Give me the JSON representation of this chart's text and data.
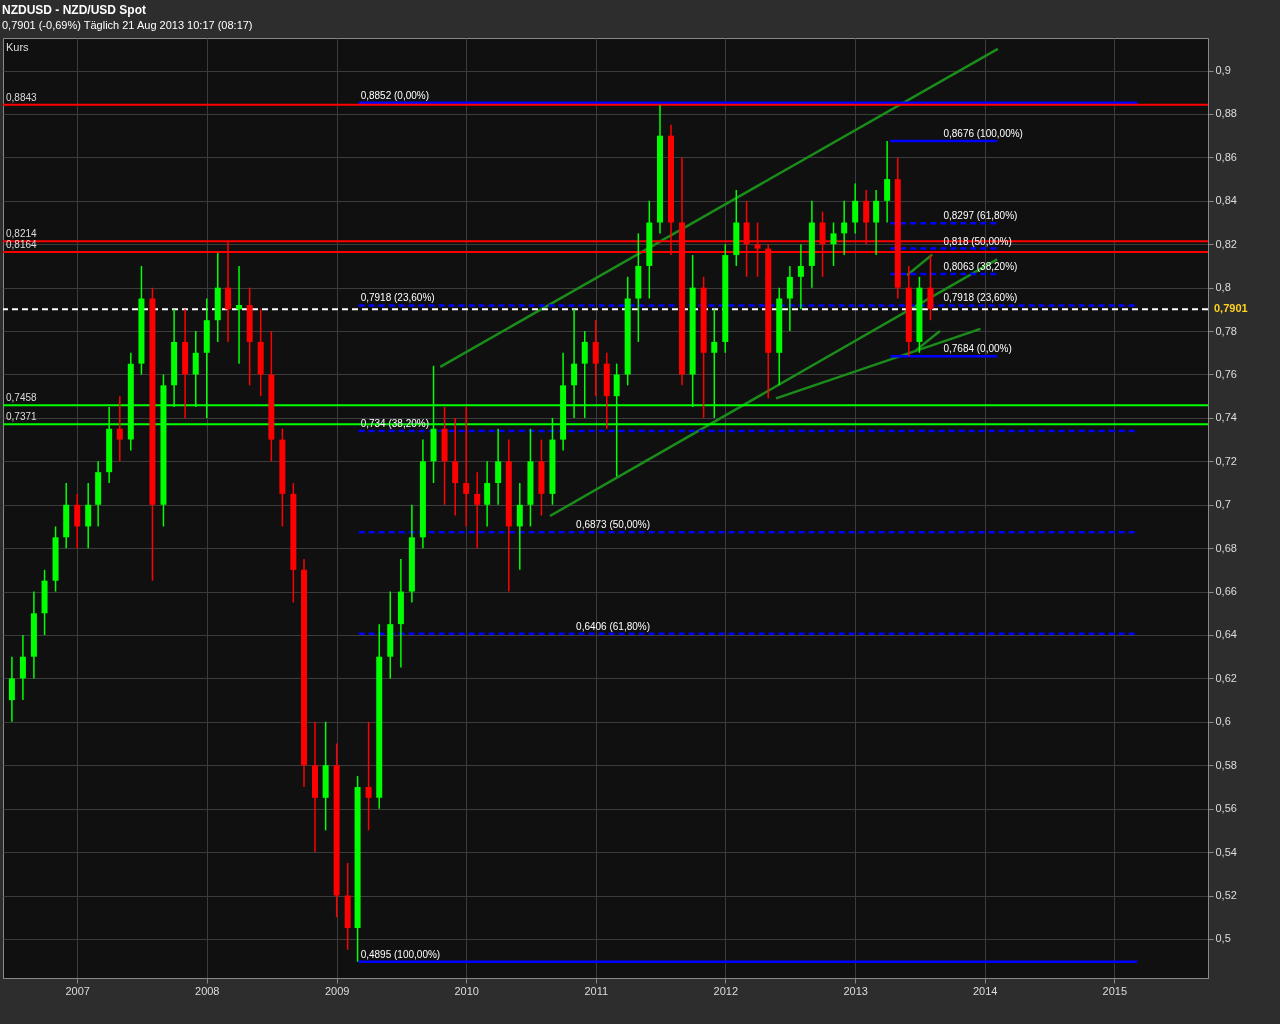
{
  "chart_data": {
    "type": "candlestick",
    "title": "NZDUSD - NZD/USD Spot",
    "subtitle": "0,7901 (-0,69%)    Täglich  21 Aug 2013 10:17 (08:17)",
    "x": [
      "2006-07",
      "2006-08",
      "2006-09",
      "2006-10",
      "2006-11",
      "2006-12",
      "2007-01",
      "2007-02",
      "2007-03",
      "2007-04",
      "2007-05",
      "2007-06",
      "2007-07",
      "2007-08",
      "2007-09",
      "2007-10",
      "2007-11",
      "2007-12",
      "2008-01",
      "2008-02",
      "2008-03",
      "2008-04",
      "2008-05",
      "2008-06",
      "2008-07",
      "2008-08",
      "2008-09",
      "2008-10",
      "2008-11",
      "2008-12",
      "2009-01",
      "2009-02",
      "2009-03",
      "2009-04",
      "2009-05",
      "2009-06",
      "2009-07",
      "2009-08",
      "2009-09",
      "2009-10",
      "2009-11",
      "2009-12",
      "2010-01",
      "2010-02",
      "2010-03",
      "2010-04",
      "2010-05",
      "2010-06",
      "2010-07",
      "2010-08",
      "2010-09",
      "2010-10",
      "2010-11",
      "2010-12",
      "2011-01",
      "2011-02",
      "2011-03",
      "2011-04",
      "2011-05",
      "2011-06",
      "2011-07",
      "2011-08",
      "2011-09",
      "2011-10",
      "2011-11",
      "2011-12",
      "2012-01",
      "2012-02",
      "2012-03",
      "2012-04",
      "2012-05",
      "2012-06",
      "2012-07",
      "2012-08",
      "2012-09",
      "2012-10",
      "2012-11",
      "2012-12",
      "2013-01",
      "2013-02",
      "2013-03",
      "2013-04",
      "2013-05",
      "2013-06",
      "2013-07",
      "2013-08"
    ],
    "ohlc": [
      [
        0.61,
        0.63,
        0.6,
        0.62
      ],
      [
        0.62,
        0.64,
        0.61,
        0.63
      ],
      [
        0.63,
        0.66,
        0.62,
        0.65
      ],
      [
        0.65,
        0.67,
        0.64,
        0.665
      ],
      [
        0.665,
        0.69,
        0.66,
        0.685
      ],
      [
        0.685,
        0.71,
        0.68,
        0.7
      ],
      [
        0.7,
        0.705,
        0.68,
        0.69
      ],
      [
        0.69,
        0.71,
        0.68,
        0.7
      ],
      [
        0.7,
        0.72,
        0.69,
        0.715
      ],
      [
        0.715,
        0.745,
        0.71,
        0.735
      ],
      [
        0.735,
        0.75,
        0.72,
        0.73
      ],
      [
        0.73,
        0.77,
        0.725,
        0.765
      ],
      [
        0.765,
        0.81,
        0.76,
        0.795
      ],
      [
        0.795,
        0.8,
        0.665,
        0.7
      ],
      [
        0.7,
        0.76,
        0.69,
        0.755
      ],
      [
        0.755,
        0.79,
        0.745,
        0.775
      ],
      [
        0.775,
        0.79,
        0.74,
        0.76
      ],
      [
        0.76,
        0.78,
        0.745,
        0.77
      ],
      [
        0.77,
        0.795,
        0.74,
        0.785
      ],
      [
        0.785,
        0.816,
        0.775,
        0.8
      ],
      [
        0.8,
        0.821,
        0.775,
        0.79
      ],
      [
        0.79,
        0.81,
        0.765,
        0.792
      ],
      [
        0.792,
        0.8,
        0.755,
        0.775
      ],
      [
        0.775,
        0.79,
        0.75,
        0.76
      ],
      [
        0.76,
        0.78,
        0.72,
        0.73
      ],
      [
        0.73,
        0.735,
        0.69,
        0.705
      ],
      [
        0.705,
        0.71,
        0.655,
        0.67
      ],
      [
        0.67,
        0.675,
        0.57,
        0.58
      ],
      [
        0.58,
        0.6,
        0.54,
        0.565
      ],
      [
        0.565,
        0.6,
        0.55,
        0.58
      ],
      [
        0.58,
        0.59,
        0.51,
        0.52
      ],
      [
        0.52,
        0.535,
        0.495,
        0.505
      ],
      [
        0.505,
        0.575,
        0.4895,
        0.57
      ],
      [
        0.57,
        0.6,
        0.55,
        0.565
      ],
      [
        0.565,
        0.645,
        0.56,
        0.63
      ],
      [
        0.63,
        0.66,
        0.62,
        0.645
      ],
      [
        0.645,
        0.675,
        0.625,
        0.66
      ],
      [
        0.66,
        0.7,
        0.655,
        0.685
      ],
      [
        0.685,
        0.73,
        0.68,
        0.72
      ],
      [
        0.72,
        0.764,
        0.71,
        0.735
      ],
      [
        0.735,
        0.745,
        0.7,
        0.72
      ],
      [
        0.72,
        0.74,
        0.695,
        0.71
      ],
      [
        0.71,
        0.745,
        0.69,
        0.705
      ],
      [
        0.705,
        0.715,
        0.68,
        0.7
      ],
      [
        0.7,
        0.72,
        0.69,
        0.71
      ],
      [
        0.71,
        0.735,
        0.7,
        0.72
      ],
      [
        0.72,
        0.73,
        0.66,
        0.69
      ],
      [
        0.69,
        0.71,
        0.67,
        0.7
      ],
      [
        0.7,
        0.735,
        0.69,
        0.72
      ],
      [
        0.72,
        0.73,
        0.695,
        0.705
      ],
      [
        0.705,
        0.74,
        0.7,
        0.73
      ],
      [
        0.73,
        0.77,
        0.725,
        0.755
      ],
      [
        0.755,
        0.79,
        0.74,
        0.765
      ],
      [
        0.765,
        0.78,
        0.74,
        0.775
      ],
      [
        0.775,
        0.785,
        0.75,
        0.765
      ],
      [
        0.765,
        0.77,
        0.735,
        0.75
      ],
      [
        0.75,
        0.765,
        0.713,
        0.76
      ],
      [
        0.76,
        0.805,
        0.755,
        0.795
      ],
      [
        0.795,
        0.825,
        0.775,
        0.81
      ],
      [
        0.81,
        0.84,
        0.795,
        0.83
      ],
      [
        0.83,
        0.884,
        0.825,
        0.87
      ],
      [
        0.87,
        0.875,
        0.815,
        0.83
      ],
      [
        0.83,
        0.86,
        0.755,
        0.76
      ],
      [
        0.76,
        0.815,
        0.745,
        0.8
      ],
      [
        0.8,
        0.805,
        0.74,
        0.77
      ],
      [
        0.77,
        0.79,
        0.74,
        0.775
      ],
      [
        0.775,
        0.82,
        0.77,
        0.815
      ],
      [
        0.815,
        0.845,
        0.81,
        0.83
      ],
      [
        0.83,
        0.84,
        0.805,
        0.82
      ],
      [
        0.82,
        0.83,
        0.805,
        0.818
      ],
      [
        0.818,
        0.82,
        0.749,
        0.77
      ],
      [
        0.77,
        0.8,
        0.755,
        0.795
      ],
      [
        0.795,
        0.81,
        0.78,
        0.805
      ],
      [
        0.805,
        0.82,
        0.79,
        0.81
      ],
      [
        0.81,
        0.84,
        0.8,
        0.83
      ],
      [
        0.83,
        0.835,
        0.805,
        0.82
      ],
      [
        0.82,
        0.83,
        0.81,
        0.825
      ],
      [
        0.825,
        0.84,
        0.815,
        0.83
      ],
      [
        0.83,
        0.848,
        0.825,
        0.84
      ],
      [
        0.84,
        0.845,
        0.82,
        0.83
      ],
      [
        0.83,
        0.845,
        0.815,
        0.84
      ],
      [
        0.84,
        0.8676,
        0.83,
        0.85
      ],
      [
        0.85,
        0.86,
        0.795,
        0.8
      ],
      [
        0.8,
        0.81,
        0.7684,
        0.775
      ],
      [
        0.775,
        0.805,
        0.77,
        0.8
      ],
      [
        0.8,
        0.815,
        0.785,
        0.7901
      ]
    ],
    "colors": [
      "#00ff00",
      "#00ff00",
      "#00ff00",
      "#00ff00",
      "#00ff00",
      "#00ff00",
      "#ff0000",
      "#00ff00",
      "#00ff00",
      "#00ff00",
      "#ff0000",
      "#00ff00",
      "#00ff00",
      "#ff0000",
      "#00ff00",
      "#00ff00",
      "#ff0000",
      "#00ff00",
      "#00ff00",
      "#00ff00",
      "#ff0000",
      "#00ff00",
      "#ff0000",
      "#ff0000",
      "#ff0000",
      "#ff0000",
      "#ff0000",
      "#ff0000",
      "#ff0000",
      "#00ff00",
      "#ff0000",
      "#ff0000",
      "#00ff00",
      "#ff0000",
      "#00ff00",
      "#00ff00",
      "#00ff00",
      "#00ff00",
      "#00ff00",
      "#00ff00",
      "#ff0000",
      "#ff0000",
      "#ff0000",
      "#ff0000",
      "#00ff00",
      "#00ff00",
      "#ff0000",
      "#00ff00",
      "#00ff00",
      "#ff0000",
      "#00ff00",
      "#00ff00",
      "#00ff00",
      "#00ff00",
      "#ff0000",
      "#ff0000",
      "#00ff00",
      "#00ff00",
      "#00ff00",
      "#00ff00",
      "#00ff00",
      "#ff0000",
      "#ff0000",
      "#00ff00",
      "#ff0000",
      "#00ff00",
      "#00ff00",
      "#00ff00",
      "#ff0000",
      "#ff0000",
      "#ff0000",
      "#00ff00",
      "#00ff00",
      "#00ff00",
      "#00ff00",
      "#ff0000",
      "#00ff00",
      "#00ff00",
      "#00ff00",
      "#ff0000",
      "#00ff00",
      "#00ff00",
      "#ff0000",
      "#ff0000",
      "#00ff00",
      "#ff0000"
    ],
    "series": [
      {
        "type": "line",
        "color": "#1a8c1a",
        "line_style": "solid",
        "x": [
          "2009-10-20",
          "2014-02-07"
        ],
        "values": [
          0.7635,
          0.91
        ]
      },
      {
        "type": "line",
        "color": "#1a8c1a",
        "line_style": "solid",
        "x": [
          "2010-08-25",
          "2014-02-05"
        ],
        "values": [
          0.6948,
          0.813
        ]
      },
      {
        "type": "line",
        "color": "#1a8c1a",
        "line_style": "solid",
        "x": [
          "2012-05-23",
          "2013-12-20"
        ],
        "values": [
          0.749,
          0.781
        ]
      },
      {
        "type": "line",
        "color": "#1a8c1a",
        "line_style": "solid",
        "x": [
          "2013-05-27",
          "2013-08-06"
        ],
        "values": [
          0.8057,
          0.8152
        ]
      },
      {
        "type": "line",
        "color": "#1a8c1a",
        "line_style": "solid",
        "x": [
          "2013-06-20",
          "2013-08-28"
        ],
        "values": [
          0.771,
          0.78
        ]
      },
      {
        "type": "line",
        "color": "#0000ff",
        "line_style": "solid",
        "x": [
          "2009-03-04",
          "2015-03-07"
        ],
        "values": [
          0.8852,
          0.8852
        ]
      },
      {
        "type": "line",
        "color": "#0000ff",
        "line_style": "dashed",
        "x": [
          "2009-03-04",
          "2015-03-07"
        ],
        "values": [
          0.7918,
          0.7918
        ]
      },
      {
        "type": "line",
        "color": "#0000ff",
        "line_style": "dashed",
        "x": [
          "2009-03-04",
          "2015-03-07"
        ],
        "values": [
          0.734,
          0.734
        ]
      },
      {
        "type": "line",
        "color": "#0000ff",
        "line_style": "dashed",
        "x": [
          "2009-03-04",
          "2015-03-07"
        ],
        "values": [
          0.6873,
          0.6873
        ]
      },
      {
        "type": "line",
        "color": "#0000ff",
        "line_style": "dashed",
        "x": [
          "2009-03-04",
          "2015-03-07"
        ],
        "values": [
          0.6406,
          0.6406
        ]
      },
      {
        "type": "line",
        "color": "#0000ff",
        "line_style": "solid",
        "x": [
          "2009-03-04",
          "2015-03-07"
        ],
        "values": [
          0.4895,
          0.4895
        ]
      },
      {
        "type": "line",
        "color": "#0000ff",
        "line_style": "solid",
        "x": [
          "2013-04-10",
          "2014-02-05"
        ],
        "values": [
          0.8676,
          0.8676
        ]
      },
      {
        "type": "line",
        "color": "#0000ff",
        "line_style": "dashed",
        "x": [
          "2013-04-10",
          "2014-02-05"
        ],
        "values": [
          0.8297,
          0.8297
        ]
      },
      {
        "type": "line",
        "color": "#0000ff",
        "line_style": "dashed",
        "x": [
          "2013-04-10",
          "2014-02-05"
        ],
        "values": [
          0.818,
          0.818
        ]
      },
      {
        "type": "line",
        "color": "#0000ff",
        "line_style": "dashed",
        "x": [
          "2013-04-10",
          "2014-02-05"
        ],
        "values": [
          0.8063,
          0.8063
        ]
      },
      {
        "type": "line",
        "color": "#0000ff",
        "line_style": "solid",
        "x": [
          "2013-04-10",
          "2014-02-05"
        ],
        "values": [
          0.7684,
          0.7684
        ]
      }
    ],
    "ref_lines": [
      {
        "axis": "y",
        "value": 0.8843,
        "label": "0,8843",
        "color": "#ff0000"
      },
      {
        "axis": "y",
        "value": 0.8214,
        "label": "0,8214",
        "color": "#ff0000"
      },
      {
        "axis": "y",
        "value": 0.8164,
        "label": "0,8164",
        "color": "#ff0000"
      },
      {
        "axis": "y",
        "value": 0.7458,
        "label": "0,7458",
        "color": "#00ff00"
      },
      {
        "axis": "y",
        "value": 0.7371,
        "label": "0,7371",
        "color": "#00ff00"
      },
      {
        "axis": "y",
        "value": 0.7901,
        "label": "0,7901",
        "color": "#ffffff",
        "line_style": "dashed"
      }
    ],
    "annotations": [
      "Kurs",
      {
        "text": "0,8852 (0,00%)",
        "x": "2009-03-04",
        "y": 0.8852
      },
      {
        "text": "0,7918 (23,60%)",
        "x": "2009-03-04",
        "y": 0.7918
      },
      {
        "text": "0,734 (38,20%)",
        "x": "2009-03-04",
        "y": 0.734
      },
      {
        "text": "0,6873 (50,00%)",
        "x": "2010-11-01",
        "y": 0.6873
      },
      {
        "text": "0,6406 (61,80%)",
        "x": "2010-11-01",
        "y": 0.6406
      },
      {
        "text": "0,4895 (100,00%)",
        "x": "2009-03-04",
        "y": 0.4895
      },
      {
        "text": "0,8676 (100,00%)",
        "x": "2013-09-01",
        "y": 0.8676
      },
      {
        "text": "0,8297 (61,80%)",
        "x": "2013-09-01",
        "y": 0.8297
      },
      {
        "text": "0,818 (50,00%)",
        "x": "2013-09-01",
        "y": 0.818
      },
      {
        "text": "0,8063 (38,20%)",
        "x": "2013-09-01",
        "y": 0.8063
      },
      {
        "text": "0,7918 (23,60%)",
        "x": "2013-09-01",
        "y": 0.7918
      },
      {
        "text": "0,7684 (0,00%)",
        "x": "2013-09-01",
        "y": 0.7684
      }
    ],
    "xlim": [
      "2006-06-20",
      "2015-09-08"
    ],
    "xticks": [
      "2007",
      "2008",
      "2009",
      "2010",
      "2011",
      "2012",
      "2013",
      "2014",
      "2015"
    ],
    "ylim": [
      0.482,
      0.915
    ],
    "yticks": [
      {
        "value": 0.5,
        "label": "0,5"
      },
      {
        "value": 0.52,
        "label": "0,52"
      },
      {
        "value": 0.54,
        "label": "0,54"
      },
      {
        "value": 0.56,
        "label": "0,56"
      },
      {
        "value": 0.58,
        "label": "0,58"
      },
      {
        "value": 0.6,
        "label": "0,6"
      },
      {
        "value": 0.62,
        "label": "0,62"
      },
      {
        "value": 0.64,
        "label": "0,64"
      },
      {
        "value": 0.66,
        "label": "0,66"
      },
      {
        "value": 0.68,
        "label": "0,68"
      },
      {
        "value": 0.7,
        "label": "0,7"
      },
      {
        "value": 0.72,
        "label": "0,72"
      },
      {
        "value": 0.74,
        "label": "0,74"
      },
      {
        "value": 0.76,
        "label": "0,76"
      },
      {
        "value": 0.78,
        "label": "0,78"
      },
      {
        "value": 0.8,
        "label": "0,8"
      },
      {
        "value": 0.82,
        "label": "0,82"
      },
      {
        "value": 0.84,
        "label": "0,84"
      },
      {
        "value": 0.86,
        "label": "0,86"
      },
      {
        "value": 0.88,
        "label": "0,88"
      },
      {
        "value": 0.9,
        "label": "0,9"
      }
    ],
    "grid": true
  }
}
